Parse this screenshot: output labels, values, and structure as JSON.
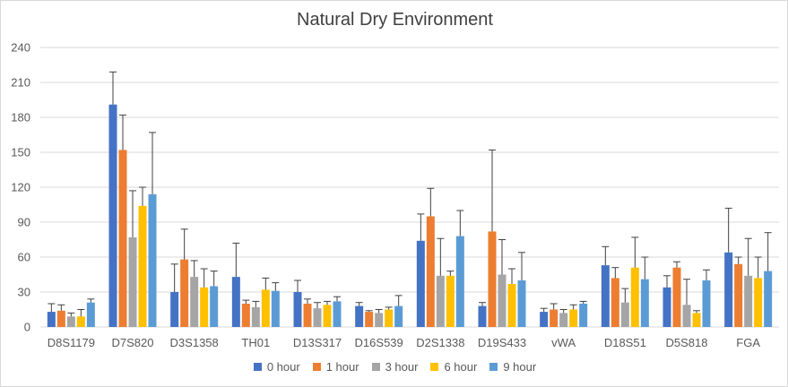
{
  "chart_data": {
    "type": "bar",
    "title": "Natural Dry Environment",
    "xlabel": "",
    "ylabel": "",
    "ylim": [
      0,
      240
    ],
    "yticks": [
      0,
      30,
      60,
      90,
      120,
      150,
      180,
      210,
      240
    ],
    "grid": true,
    "legend_position": "bottom",
    "error_bars": true,
    "categories": [
      "D8S1179",
      "D7S820",
      "D3S1358",
      "TH01",
      "D13S317",
      "D16S539",
      "D2S1338",
      "D19S433",
      "vWA",
      "D18S51",
      "D5S818",
      "FGA"
    ],
    "series": [
      {
        "name": "0 hour",
        "color": "#4472c4",
        "values": [
          13,
          191,
          30,
          43,
          30,
          18,
          74,
          18,
          13,
          53,
          34,
          64
        ],
        "errors": [
          7,
          28,
          24,
          29,
          10,
          3,
          23,
          3,
          3,
          16,
          10,
          38
        ]
      },
      {
        "name": "1 hour",
        "color": "#ed7d31",
        "values": [
          14,
          152,
          58,
          20,
          20,
          13,
          95,
          82,
          15,
          42,
          51,
          54
        ],
        "errors": [
          5,
          30,
          26,
          3,
          4,
          1,
          24,
          70,
          5,
          9,
          5,
          6
        ]
      },
      {
        "name": "3 hour",
        "color": "#a5a5a5",
        "values": [
          9,
          77,
          43,
          17,
          16,
          12,
          44,
          45,
          12,
          21,
          19,
          44
        ],
        "errors": [
          3,
          40,
          14,
          5,
          5,
          3,
          32,
          30,
          3,
          12,
          22,
          32
        ]
      },
      {
        "name": "6 hour",
        "color": "#ffc000",
        "values": [
          9,
          104,
          34,
          32,
          19,
          15,
          44,
          37,
          15,
          51,
          12,
          42
        ],
        "errors": [
          6,
          16,
          16,
          10,
          3,
          2,
          4,
          13,
          4,
          26,
          2,
          18
        ]
      },
      {
        "name": "9 hour",
        "color": "#5b9bd5",
        "values": [
          21,
          114,
          35,
          31,
          22,
          18,
          78,
          40,
          20,
          41,
          40,
          48
        ],
        "errors": [
          3,
          53,
          13,
          7,
          4,
          9,
          22,
          24,
          2,
          19,
          9,
          33
        ]
      }
    ]
  }
}
